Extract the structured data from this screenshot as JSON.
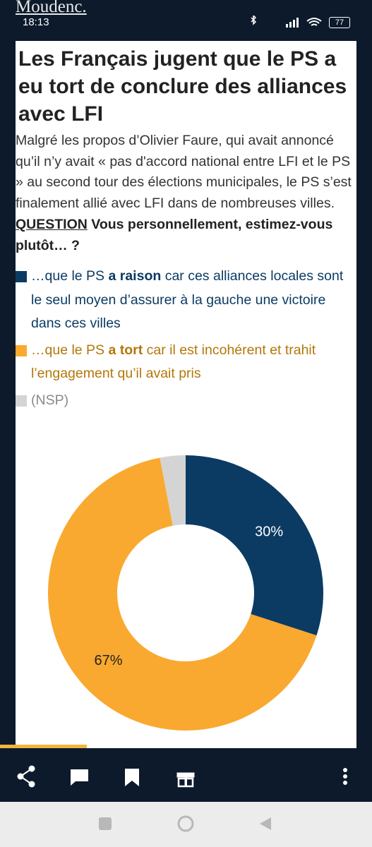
{
  "status_bar": {
    "overlay_text": "Moudenc.",
    "time": "18:13",
    "battery": "77"
  },
  "article": {
    "title": "Les Français jugent que le PS a eu tort de conclure des alliances avec LFI",
    "intro": "Malgré les propos d’Olivier Faure, qui avait annoncé qu’il n’y avait « pas d'accord national entre LFI et le PS » au second tour des élections municipales, le PS s’est finalement allié avec LFI dans de nombreuses villes.",
    "question": {
      "label": "QUESTION",
      "text": "Vous personnellement, estimez-vous plutôt… ?"
    }
  },
  "chart_data": {
    "type": "donut",
    "categories": [
      [
        "…que le PS ",
        "a raison",
        " car ces alliances locales sont le seul moyen d’assurer à la gauche une victoire dans ces villes"
      ],
      [
        "…que le PS ",
        "a tort",
        " car il est incohérent et trahit l’engagement qu’il avait pris"
      ],
      [
        "(NSP)"
      ]
    ],
    "values": [
      30,
      67,
      3
    ],
    "value_labels": [
      "30%",
      "67%",
      null
    ],
    "colors": [
      "#0b3b63",
      "#f9a92f",
      "#d4d4d4"
    ],
    "legend_text_colors": [
      "#0b3b63",
      "#b47708",
      "#8a8a8a"
    ],
    "label_colors": [
      "#ffffff",
      "#222222",
      null
    ]
  }
}
